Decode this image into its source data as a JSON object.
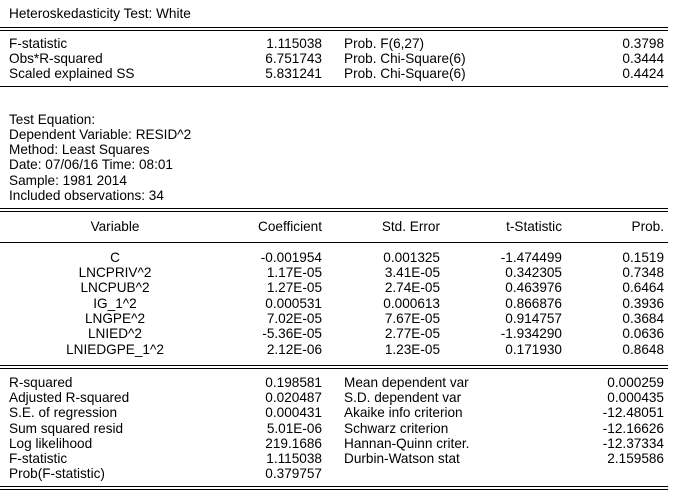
{
  "header": {
    "title": "Heteroskedasticity Test: White"
  },
  "tests": [
    {
      "label": "F-statistic",
      "value": "1.115038",
      "prob_label": "Prob. F(6,27)",
      "prob": "0.3798"
    },
    {
      "label": "Obs*R-squared",
      "value": "6.751743",
      "prob_label": "Prob. Chi-Square(6)",
      "prob": "0.3444"
    },
    {
      "label": "Scaled explained SS",
      "value": "5.831241",
      "prob_label": "Prob. Chi-Square(6)",
      "prob": "0.4424"
    }
  ],
  "equation_info": [
    "Test Equation:",
    "Dependent Variable: RESID^2",
    "Method: Least Squares",
    "Date: 07/06/16   Time: 08:01",
    "Sample: 1981 2014",
    "Included observations: 34"
  ],
  "coef_table": {
    "headers": [
      "Variable",
      "Coefficient",
      "Std. Error",
      "t-Statistic",
      "Prob."
    ],
    "rows": [
      [
        "C",
        "-0.001954",
        "0.001325",
        "-1.474499",
        "0.1519"
      ],
      [
        "LNCPRIV^2",
        "1.17E-05",
        "3.41E-05",
        "0.342305",
        "0.7348"
      ],
      [
        "LNCPUB^2",
        "1.27E-05",
        "2.74E-05",
        "0.463976",
        "0.6464"
      ],
      [
        "IG_1^2",
        "0.000531",
        "0.000613",
        "0.866876",
        "0.3936"
      ],
      [
        "LNGPE^2",
        "7.02E-05",
        "7.67E-05",
        "0.914757",
        "0.3684"
      ],
      [
        "LNIED^2",
        "-5.36E-05",
        "2.77E-05",
        "-1.934290",
        "0.0636"
      ],
      [
        "LNIEDGPE_1^2",
        "2.12E-06",
        "1.23E-05",
        "0.171930",
        "0.8648"
      ]
    ]
  },
  "summary_stats": [
    {
      "label": "R-squared",
      "value": "0.198581",
      "label2": "Mean dependent var",
      "value2": "0.000259"
    },
    {
      "label": "Adjusted R-squared",
      "value": "0.020487",
      "label2": "S.D. dependent var",
      "value2": "0.000435"
    },
    {
      "label": "S.E. of regression",
      "value": "0.000431",
      "label2": "Akaike info criterion",
      "value2": "-12.48051"
    },
    {
      "label": "Sum squared resid",
      "value": "5.01E-06",
      "label2": "Schwarz criterion",
      "value2": "-12.16626"
    },
    {
      "label": "Log likelihood",
      "value": "219.1686",
      "label2": "Hannan-Quinn criter.",
      "value2": "-12.37334"
    },
    {
      "label": "F-statistic",
      "value": "1.115038",
      "label2": "Durbin-Watson stat",
      "value2": "2.159586"
    },
    {
      "label": "Prob(F-statistic)",
      "value": "0.379757",
      "label2": "",
      "value2": ""
    }
  ]
}
